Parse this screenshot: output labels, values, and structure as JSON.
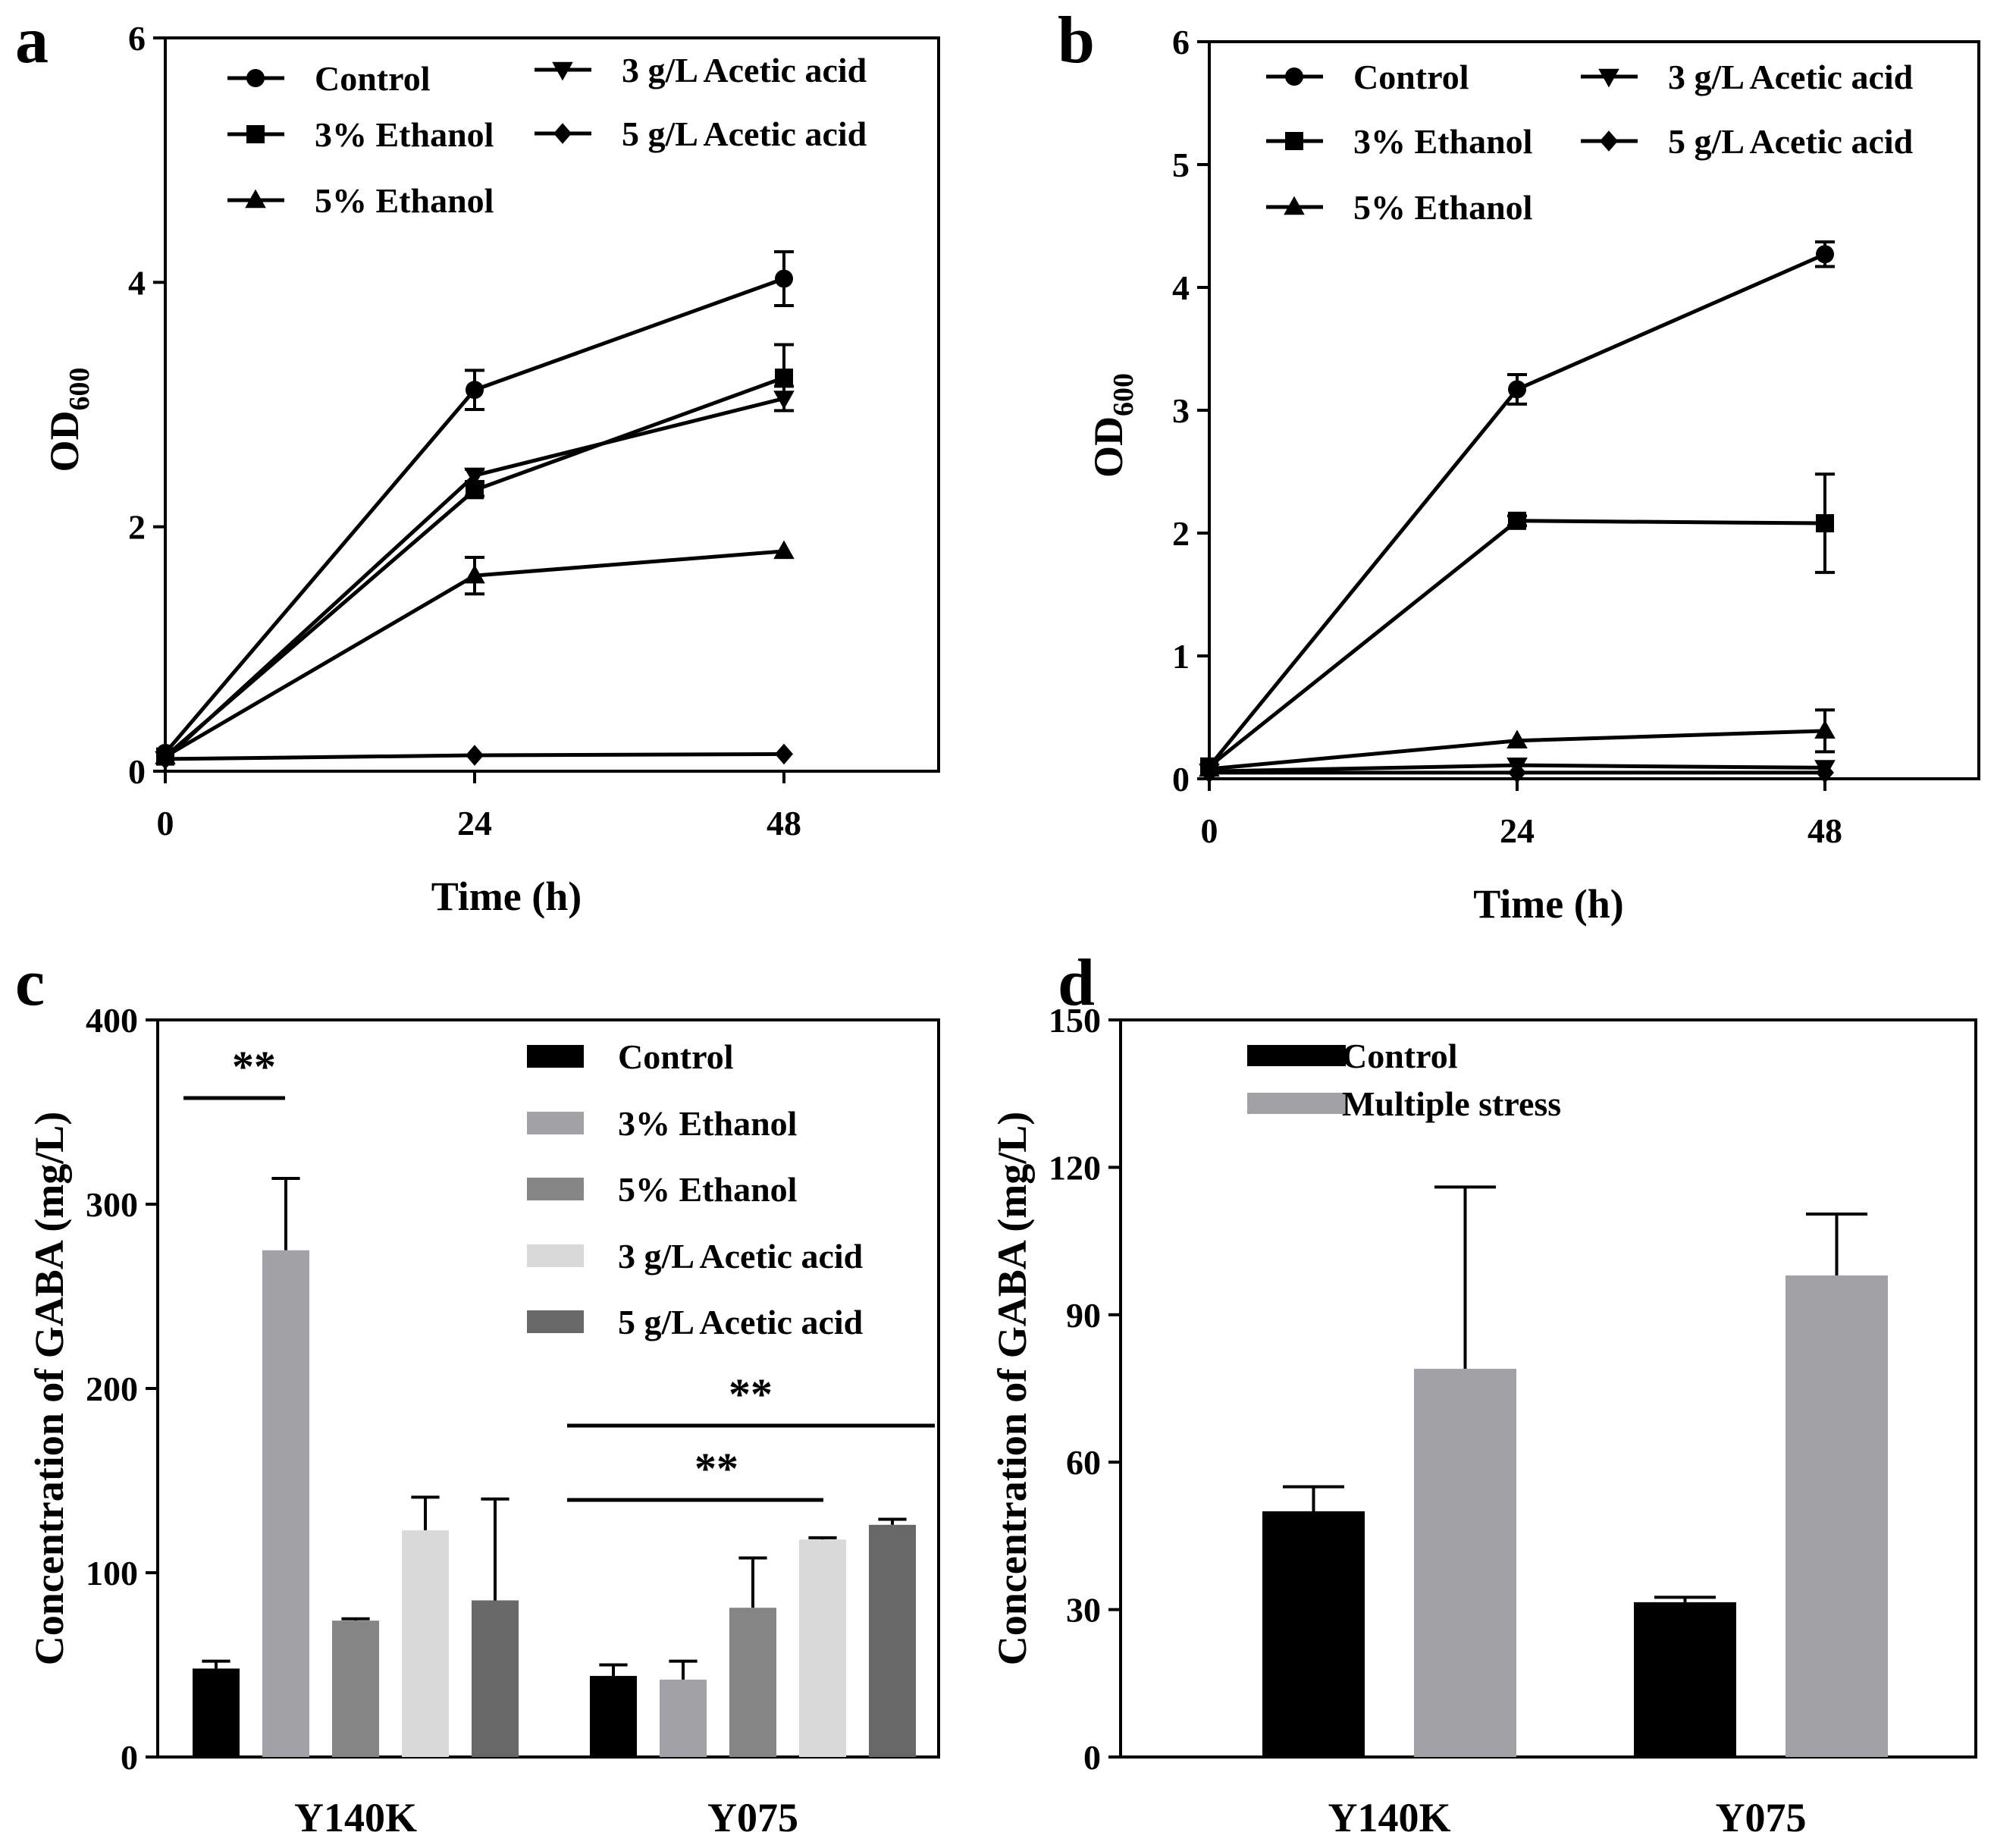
{
  "chart_data": [
    {
      "panel": "a",
      "type": "line",
      "xlabel": "Time (h)",
      "ylabel": "OD",
      "ylabel_subscript": "600",
      "xlim": [
        0,
        60
      ],
      "ylim": [
        0,
        6
      ],
      "xticks": [
        0,
        24,
        48
      ],
      "yticks": [
        0,
        2,
        4,
        6
      ],
      "x": [
        0,
        24,
        48
      ],
      "legend_columns": [
        [
          "Control",
          "3% Ethanol",
          "5% Ethanol"
        ],
        [
          "3 g/L Acetic acid",
          "5 g/L Acetic acid"
        ]
      ],
      "series": [
        {
          "name": "Control",
          "marker": "circle",
          "values": [
            0.15,
            3.12,
            4.03
          ],
          "errors": [
            0.02,
            0.16,
            0.22
          ]
        },
        {
          "name": "3% Ethanol",
          "marker": "square",
          "values": [
            0.12,
            2.3,
            3.22
          ],
          "errors": [
            0.02,
            0.05,
            0.27
          ]
        },
        {
          "name": "5% Ethanol",
          "marker": "triangle-up",
          "values": [
            0.12,
            1.6,
            1.8
          ],
          "errors": [
            0.02,
            0.15,
            0.02
          ]
        },
        {
          "name": "3 g/L Acetic acid",
          "marker": "triangle-down",
          "values": [
            0.1,
            2.42,
            3.05
          ],
          "errors": [
            0.02,
            0.05,
            0.1
          ]
        },
        {
          "name": "5 g/L Acetic acid",
          "marker": "diamond",
          "values": [
            0.1,
            0.13,
            0.14
          ],
          "errors": [
            0.01,
            0.01,
            0.01
          ]
        }
      ]
    },
    {
      "panel": "b",
      "type": "line",
      "xlabel": "Time (h)",
      "ylabel": "OD",
      "ylabel_subscript": "600",
      "xlim": [
        0,
        60
      ],
      "ylim": [
        0,
        6
      ],
      "xticks": [
        0,
        24,
        48
      ],
      "yticks": [
        0,
        1,
        2,
        3,
        4,
        5,
        6
      ],
      "x": [
        0,
        24,
        48
      ],
      "legend_columns": [
        [
          "Control",
          "3% Ethanol",
          "5% Ethanol"
        ],
        [
          "3 g/L Acetic acid",
          "5 g/L Acetic acid"
        ]
      ],
      "series": [
        {
          "name": "Control",
          "marker": "circle",
          "values": [
            0.1,
            3.17,
            4.27
          ],
          "errors": [
            0.02,
            0.12,
            0.1
          ]
        },
        {
          "name": "3% Ethanol",
          "marker": "square",
          "values": [
            0.1,
            2.1,
            2.08
          ],
          "errors": [
            0.02,
            0.04,
            0.4
          ]
        },
        {
          "name": "5% Ethanol",
          "marker": "triangle-up",
          "values": [
            0.08,
            0.31,
            0.39
          ],
          "errors": [
            0.02,
            0.03,
            0.17
          ]
        },
        {
          "name": "3 g/L Acetic acid",
          "marker": "triangle-down",
          "values": [
            0.06,
            0.11,
            0.09
          ],
          "errors": [
            0.01,
            0.02,
            0.02
          ]
        },
        {
          "name": "5 g/L Acetic acid",
          "marker": "diamond",
          "values": [
            0.05,
            0.05,
            0.05
          ],
          "errors": [
            0.01,
            0.01,
            0.01
          ]
        }
      ]
    },
    {
      "panel": "c",
      "type": "bar",
      "ylabel": "Concentration of GABA (mg/L)",
      "ylim": [
        0,
        400
      ],
      "yticks": [
        0,
        100,
        200,
        300,
        400
      ],
      "categories": [
        "Y140K",
        "Y075"
      ],
      "series": [
        {
          "name": "Control",
          "color": "#000000",
          "values": [
            48,
            44
          ],
          "errors": [
            4,
            6
          ]
        },
        {
          "name": "3% Ethanol",
          "color": "#a1a1a6",
          "values": [
            275,
            42
          ],
          "errors": [
            39,
            10
          ]
        },
        {
          "name": "5% Ethanol",
          "color": "#858585",
          "values": [
            74,
            81
          ],
          "errors": [
            1,
            27
          ]
        },
        {
          "name": "3 g/L Acetic acid",
          "color": "#d9d9d9",
          "values": [
            123,
            118
          ],
          "errors": [
            18,
            1
          ]
        },
        {
          "name": "5 g/L Acetic acid",
          "color": "#686868",
          "values": [
            85,
            126
          ],
          "errors": [
            55,
            3
          ]
        }
      ],
      "significance": [
        {
          "label": "**",
          "group": "Y140K",
          "from_series": 0,
          "to_series": 1
        },
        {
          "label": "**",
          "group": "Y075",
          "from_series": 0,
          "to_series": 3
        },
        {
          "label": "**",
          "group": "Y075",
          "from_series": 0,
          "to_series": 4
        }
      ]
    },
    {
      "panel": "d",
      "type": "bar",
      "ylabel": "Concentration of GABA (mg/L)",
      "ylim": [
        0,
        150
      ],
      "yticks": [
        0,
        30,
        60,
        90,
        120,
        150
      ],
      "categories": [
        "Y140K",
        "Y075"
      ],
      "series": [
        {
          "name": "Control",
          "color": "#000000",
          "values": [
            50,
            31.5
          ],
          "errors": [
            5,
            1
          ]
        },
        {
          "name": "Multiple stress",
          "color": "#a1a1a6",
          "values": [
            79,
            98
          ],
          "errors": [
            37,
            12.5
          ]
        }
      ]
    }
  ]
}
